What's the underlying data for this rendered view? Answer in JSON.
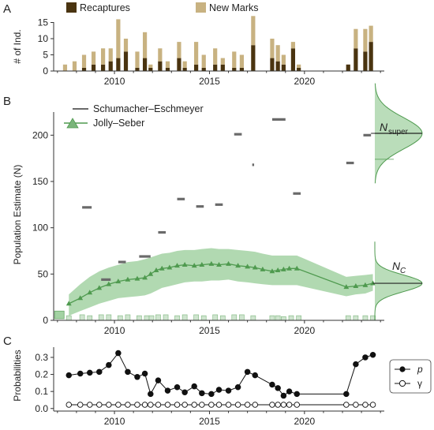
{
  "chart_data": [
    {
      "type": "bar",
      "panel_label": "A",
      "ylabel": "# of Ind.",
      "xlim": [
        2006.8,
        2024.2
      ],
      "ylim": [
        0,
        20
      ],
      "yticks": [
        0,
        5,
        10,
        15
      ],
      "xticks": [
        2010,
        2015,
        2020
      ],
      "legend_position": "top",
      "series": [
        {
          "name": "Recaptures",
          "color": "#4a3410"
        },
        {
          "name": "New Marks",
          "color": "#c8b281"
        }
      ],
      "x": [
        2007.4,
        2007.9,
        2008.4,
        2008.9,
        2009.4,
        2009.8,
        2010.2,
        2010.6,
        2011.2,
        2011.6,
        2011.9,
        2012.4,
        2012.8,
        2013.4,
        2013.7,
        2014.3,
        2014.7,
        2015.3,
        2015.7,
        2016.3,
        2016.7,
        2017.3,
        2018.3,
        2018.6,
        2018.9,
        2019.4,
        2019.7,
        2022.3,
        2022.7,
        2023.2,
        2023.5
      ],
      "recaptures": [
        0,
        0,
        1,
        2,
        2,
        3,
        4,
        6,
        1,
        4,
        1,
        3,
        1,
        4,
        1,
        2,
        1,
        2,
        2,
        1,
        1,
        8,
        4,
        3,
        2,
        7,
        1,
        2,
        7,
        6,
        9
      ],
      "new_marks": [
        2,
        3,
        4,
        4,
        5,
        4,
        12,
        4,
        5,
        8,
        1,
        4,
        2,
        5,
        2,
        7,
        4,
        5,
        2,
        5,
        4,
        9,
        6,
        5,
        3,
        2,
        1,
        0,
        6,
        7,
        5
      ]
    },
    {
      "type": "line",
      "panel_label": "B",
      "ylabel": "Population Estimate (N)",
      "xlim": [
        2006.8,
        2024.2
      ],
      "ylim": [
        0,
        225
      ],
      "yticks": [
        0,
        50,
        100,
        150,
        200
      ],
      "xticks": [
        2010,
        2015,
        2020
      ],
      "legend_position": "top-left",
      "schumacher_eschmeyer": {
        "name": "Schumacher–Eschmeyer",
        "color": "#6a6a6a",
        "segments": [
          {
            "x0": 2008.3,
            "x1": 2008.8,
            "y": 122
          },
          {
            "x0": 2009.3,
            "x1": 2009.8,
            "y": 44
          },
          {
            "x0": 2010.2,
            "x1": 2010.6,
            "y": 63
          },
          {
            "x0": 2011.3,
            "x1": 2011.9,
            "y": 69
          },
          {
            "x0": 2012.3,
            "x1": 2012.7,
            "y": 95
          },
          {
            "x0": 2013.3,
            "x1": 2013.7,
            "y": 131
          },
          {
            "x0": 2014.3,
            "x1": 2014.7,
            "y": 123
          },
          {
            "x0": 2015.3,
            "x1": 2015.7,
            "y": 125
          },
          {
            "x0": 2016.3,
            "x1": 2016.7,
            "y": 201
          },
          {
            "x0": 2017.25,
            "x1": 2017.35,
            "y": 168
          },
          {
            "x0": 2018.3,
            "x1": 2019.0,
            "y": 217
          },
          {
            "x0": 2019.4,
            "x1": 2019.8,
            "y": 137
          },
          {
            "x0": 2022.2,
            "x1": 2022.6,
            "y": 170
          },
          {
            "x0": 2023.1,
            "x1": 2023.5,
            "y": 200
          }
        ]
      },
      "jolly_seber": {
        "name": "Jolly–Seber",
        "color": "#4f9a4f",
        "band_color": "#a3d2a3",
        "x": [
          2007.6,
          2008.2,
          2008.7,
          2009.2,
          2009.7,
          2010.2,
          2010.7,
          2011.2,
          2011.6,
          2011.9,
          2012.2,
          2012.5,
          2012.9,
          2013.3,
          2013.7,
          2014.2,
          2014.6,
          2015.1,
          2015.5,
          2016.0,
          2016.5,
          2017.0,
          2017.4,
          2017.8,
          2018.3,
          2018.6,
          2018.9,
          2019.2,
          2019.6,
          2022.2,
          2022.7,
          2023.2,
          2023.6
        ],
        "y": [
          18,
          24,
          30,
          35,
          39,
          42,
          44,
          45,
          46,
          50,
          54,
          56,
          57,
          59,
          60,
          59,
          60,
          61,
          60,
          61,
          59,
          58,
          57,
          55,
          53,
          54,
          55,
          56,
          56,
          36,
          37,
          38,
          40
        ],
        "lower": [
          5,
          10,
          14,
          18,
          21,
          24,
          25,
          26,
          27,
          29,
          32,
          35,
          37,
          39,
          41,
          42,
          42,
          43,
          43,
          44,
          42,
          41,
          40,
          39,
          38,
          38,
          38,
          38,
          38,
          26,
          28,
          29,
          32
        ],
        "upper": [
          28,
          39,
          47,
          53,
          57,
          60,
          63,
          64,
          66,
          68,
          70,
          72,
          73,
          75,
          76,
          76,
          77,
          78,
          77,
          77,
          76,
          75,
          74,
          72,
          70,
          70,
          70,
          70,
          70,
          47,
          48,
          49,
          50
        ]
      },
      "small_boxes": {
        "x": [
          2007.6,
          2008.3,
          2008.7,
          2009.3,
          2009.7,
          2010.3,
          2010.7,
          2011.3,
          2011.7,
          2011.95,
          2012.3,
          2012.7,
          2013.3,
          2013.7,
          2014.3,
          2014.7,
          2015.3,
          2015.7,
          2016.3,
          2016.7,
          2017.3,
          2018.3,
          2018.6,
          2018.9,
          2019.3,
          2019.7,
          2022.3,
          2022.7,
          2023.2,
          2023.6
        ],
        "y": [
          5,
          6,
          5,
          6,
          6,
          5,
          6,
          5,
          5,
          5,
          6,
          6,
          5,
          6,
          6,
          5,
          6,
          5,
          6,
          6,
          5,
          5,
          5,
          4,
          5,
          5,
          5,
          5,
          5,
          5
        ],
        "first_box": {
          "x": 2007.1,
          "y": 10
        }
      },
      "annotations": [
        {
          "label": "N",
          "subscript": "super",
          "y": 202
        },
        {
          "label": "N",
          "subscript": "C",
          "y": 40
        }
      ]
    },
    {
      "type": "line",
      "panel_label": "C",
      "ylabel": "Probabilities",
      "xlim": [
        2006.8,
        2024.2
      ],
      "ylim": [
        -0.015,
        0.36
      ],
      "yticks": [
        0.0,
        0.1,
        0.2,
        0.3
      ],
      "ytick_labels": [
        "0.0",
        "0.1",
        "0.2",
        "0.3"
      ],
      "xticks": [
        2010,
        2015,
        2020
      ],
      "legend_position": "right",
      "series": [
        {
          "name": "p",
          "marker": "filled",
          "x": [
            2007.6,
            2008.2,
            2008.7,
            2009.2,
            2009.7,
            2010.2,
            2010.7,
            2011.2,
            2011.6,
            2011.9,
            2012.3,
            2012.8,
            2013.3,
            2013.7,
            2014.2,
            2014.6,
            2015.1,
            2015.5,
            2016.0,
            2016.5,
            2017.0,
            2017.4,
            2018.3,
            2018.6,
            2018.9,
            2019.2,
            2019.6,
            2022.2,
            2022.7,
            2023.2,
            2023.6
          ],
          "y": [
            0.195,
            0.205,
            0.21,
            0.215,
            0.255,
            0.325,
            0.215,
            0.185,
            0.205,
            0.085,
            0.165,
            0.105,
            0.125,
            0.095,
            0.13,
            0.09,
            0.085,
            0.11,
            0.105,
            0.125,
            0.215,
            0.195,
            0.14,
            0.12,
            0.075,
            0.1,
            0.085,
            0.085,
            0.26,
            0.3,
            0.315
          ]
        },
        {
          "name": "γ",
          "marker": "open",
          "x": [
            2007.6,
            2008.2,
            2008.7,
            2009.2,
            2009.7,
            2010.2,
            2010.7,
            2011.2,
            2011.6,
            2011.9,
            2012.3,
            2012.8,
            2013.3,
            2013.7,
            2014.2,
            2014.6,
            2015.1,
            2015.5,
            2016.0,
            2016.5,
            2017.0,
            2017.4,
            2018.3,
            2018.6,
            2018.9,
            2019.2,
            2019.6,
            2022.2,
            2022.7,
            2023.2,
            2023.6
          ],
          "y": [
            0.022,
            0.022,
            0.022,
            0.022,
            0.022,
            0.022,
            0.022,
            0.022,
            0.022,
            0.022,
            0.022,
            0.022,
            0.022,
            0.022,
            0.022,
            0.022,
            0.022,
            0.022,
            0.022,
            0.022,
            0.022,
            0.022,
            0.022,
            0.022,
            0.022,
            0.022,
            0.022,
            0.022,
            0.022,
            0.022,
            0.022
          ]
        }
      ]
    }
  ]
}
